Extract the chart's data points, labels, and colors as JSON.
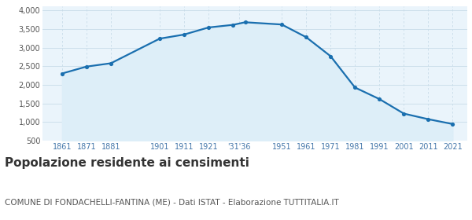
{
  "years": [
    1861,
    1871,
    1881,
    1901,
    1911,
    1921,
    1931,
    1936,
    1951,
    1961,
    1971,
    1981,
    1991,
    2001,
    2011,
    2021
  ],
  "population": [
    2305,
    2490,
    2580,
    3240,
    3350,
    3540,
    3610,
    3680,
    3620,
    3280,
    2770,
    1930,
    1620,
    1230,
    1080,
    950
  ],
  "yticks": [
    500,
    1000,
    1500,
    2000,
    2500,
    3000,
    3500,
    4000
  ],
  "ylim": [
    500,
    4100
  ],
  "xlim": [
    1853,
    2027
  ],
  "line_color": "#1a6faf",
  "fill_color": "#ddeef8",
  "marker_color": "#1a6faf",
  "bg_color": "#ffffff",
  "plot_bg_color": "#eaf4fb",
  "grid_color": "#c8dce8",
  "x_tick_color": "#4477aa",
  "y_tick_color": "#555555",
  "title": "Popolazione residente ai censimenti",
  "subtitle": "COMUNE DI FONDACHELLI-FANTINA (ME) - Dati ISTAT - Elaborazione TUTTITALIA.IT",
  "title_fontsize": 11,
  "subtitle_fontsize": 7.5
}
